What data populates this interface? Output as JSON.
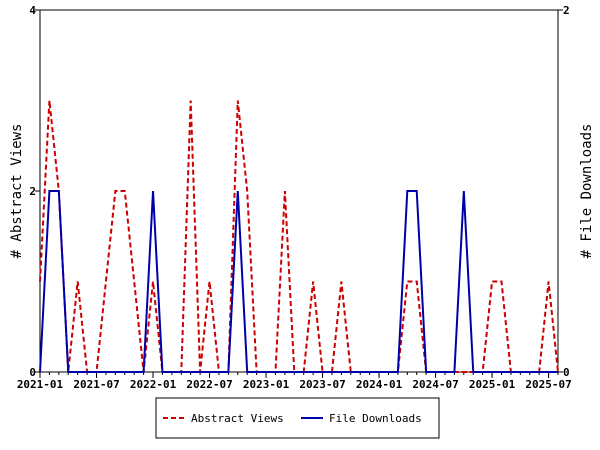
{
  "chart_data": {
    "type": "line",
    "x": [
      "2021-01",
      "2021-02",
      "2021-03",
      "2021-04",
      "2021-05",
      "2021-06",
      "2021-07",
      "2021-08",
      "2021-09",
      "2021-10",
      "2021-11",
      "2021-12",
      "2022-01",
      "2022-02",
      "2022-03",
      "2022-04",
      "2022-05",
      "2022-06",
      "2022-07",
      "2022-08",
      "2022-09",
      "2022-10",
      "2022-11",
      "2022-12",
      "2023-01",
      "2023-02",
      "2023-03",
      "2023-04",
      "2023-05",
      "2023-06",
      "2023-07",
      "2023-08",
      "2023-09",
      "2023-10",
      "2023-11",
      "2023-12",
      "2024-01",
      "2024-02",
      "2024-03",
      "2024-04",
      "2024-05",
      "2024-06",
      "2024-07",
      "2024-08",
      "2024-09",
      "2024-10",
      "2024-11",
      "2024-12",
      "2025-01",
      "2025-02",
      "2025-03",
      "2025-04",
      "2025-05",
      "2025-06",
      "2025-07",
      "2025-08"
    ],
    "xticks": [
      "2021-01",
      "2021-07",
      "2022-01",
      "2022-07",
      "2023-01",
      "2023-07",
      "2024-01",
      "2024-07",
      "2025-01",
      "2025-07"
    ],
    "ylabel": "# Abstract Views",
    "y2label": "# File Downloads",
    "ylim": [
      0,
      4
    ],
    "yticks": [
      0,
      2,
      4
    ],
    "y2lim": [
      0,
      2
    ],
    "y2ticks": [
      0,
      2
    ],
    "legend": "bottom",
    "series": [
      {
        "name": "Abstract Views",
        "color": "#cc0000",
        "dash": true,
        "values": [
          1,
          3,
          2,
          0,
          1,
          0,
          0,
          1,
          2,
          2,
          1,
          0,
          1,
          0,
          0,
          0,
          3,
          0,
          1,
          0,
          0,
          3,
          2,
          0,
          0,
          0,
          2,
          0,
          0,
          1,
          0,
          0,
          1,
          0,
          0,
          0,
          0,
          0,
          0,
          1,
          1,
          0,
          0,
          0,
          0,
          0,
          0,
          0,
          1,
          1,
          0,
          0,
          0,
          0,
          1,
          0
        ]
      },
      {
        "name": "File Downloads",
        "color": "#0000aa",
        "axis": "y2",
        "values": [
          0,
          1,
          1,
          0,
          0,
          0,
          0,
          0,
          0,
          0,
          0,
          0,
          1,
          0,
          0,
          0,
          0,
          0,
          0,
          0,
          0,
          1,
          0,
          0,
          0,
          0,
          0,
          0,
          0,
          0,
          0,
          0,
          0,
          0,
          0,
          0,
          0,
          0,
          0,
          1,
          1,
          0,
          0,
          0,
          0,
          1,
          0,
          0,
          0,
          0,
          0,
          0,
          0,
          0,
          0,
          0
        ]
      }
    ]
  }
}
